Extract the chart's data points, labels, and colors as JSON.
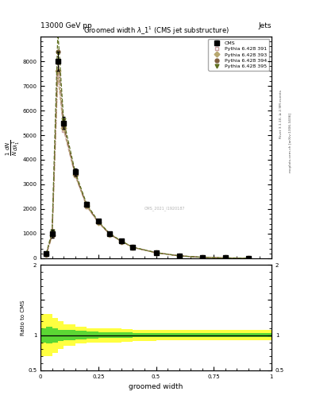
{
  "title": "Groomed width λ_1¹ (CMS jet substructure)",
  "header_left": "13000 GeV pp",
  "header_right": "Jets",
  "right_label1": "Rivet 3.1.10, ≥ 2.9M events",
  "right_label2": "mcplots.cern.ch [arXiv:1306.3436]",
  "watermark": "CMS_2021_I1920187",
  "xlabel": "groomed width",
  "ylabel": "1/N dN/dλ_1¹",
  "ratio_ylabel": "Ratio to CMS",
  "xlim": [
    0,
    1
  ],
  "main_ylim": [
    0,
    9000
  ],
  "ratio_ylim": [
    0.5,
    2.0
  ],
  "x": [
    0.025,
    0.05,
    0.075,
    0.1,
    0.15,
    0.2,
    0.25,
    0.3,
    0.35,
    0.4,
    0.5,
    0.6,
    0.7,
    0.8,
    0.9
  ],
  "cms_y": [
    200,
    1000,
    8000,
    5500,
    3500,
    2200,
    1500,
    1000,
    700,
    450,
    230,
    100,
    40,
    15,
    5
  ],
  "cms_yerr": [
    50,
    150,
    400,
    250,
    150,
    100,
    70,
    50,
    35,
    25,
    15,
    8,
    4,
    2,
    1
  ],
  "py391_y": [
    150,
    900,
    7400,
    5200,
    3350,
    2100,
    1450,
    970,
    680,
    440,
    225,
    98,
    39,
    14,
    4.5
  ],
  "py393_y": [
    160,
    920,
    7600,
    5300,
    3380,
    2120,
    1460,
    975,
    685,
    442,
    227,
    99,
    39.5,
    14.5,
    4.7
  ],
  "py394_y": [
    170,
    980,
    8400,
    5400,
    3420,
    2150,
    1470,
    985,
    690,
    445,
    228,
    100,
    40,
    15,
    4.8
  ],
  "py395_y": [
    200,
    1100,
    9200,
    5600,
    3500,
    2200,
    1500,
    1000,
    700,
    450,
    230,
    100,
    40,
    15,
    5
  ],
  "color_391": "#c8a0a0",
  "color_393": "#b8a870",
  "color_394": "#806040",
  "color_395": "#607020",
  "ls_391": "--",
  "ls_393": "-.",
  "ls_394": "-.",
  "ls_395": "--",
  "marker_391": "s",
  "marker_393": "D",
  "marker_394": "o",
  "marker_395": "v",
  "yticks": [
    0,
    1000,
    2000,
    3000,
    4000,
    5000,
    6000,
    7000,
    8000
  ],
  "ratio_yticks": [
    0.5,
    1.0,
    1.5,
    2.0
  ],
  "xticks": [
    0.0,
    0.25,
    0.5,
    0.75,
    1.0
  ],
  "ratio_bands_x": [
    0.0,
    0.025,
    0.05,
    0.075,
    0.1,
    0.15,
    0.2,
    0.25,
    0.3,
    0.35,
    0.4,
    0.5,
    0.6,
    0.7,
    0.8,
    0.9,
    1.0
  ],
  "ratio_bands_yellow_lo": [
    0.7,
    0.7,
    0.75,
    0.8,
    0.85,
    0.88,
    0.9,
    0.9,
    0.9,
    0.91,
    0.92,
    0.93,
    0.93,
    0.93,
    0.93,
    0.93,
    0.93
  ],
  "ratio_bands_yellow_hi": [
    1.3,
    1.3,
    1.25,
    1.2,
    1.15,
    1.12,
    1.1,
    1.1,
    1.1,
    1.09,
    1.08,
    1.07,
    1.07,
    1.07,
    1.07,
    1.07,
    1.07
  ],
  "ratio_bands_green_lo": [
    0.9,
    0.88,
    0.9,
    0.92,
    0.93,
    0.94,
    0.95,
    0.96,
    0.96,
    0.96,
    0.97,
    0.97,
    0.97,
    0.97,
    0.97,
    0.97,
    0.97
  ],
  "ratio_bands_green_hi": [
    1.1,
    1.12,
    1.1,
    1.08,
    1.07,
    1.06,
    1.05,
    1.04,
    1.04,
    1.04,
    1.03,
    1.03,
    1.03,
    1.03,
    1.03,
    1.03,
    1.03
  ]
}
